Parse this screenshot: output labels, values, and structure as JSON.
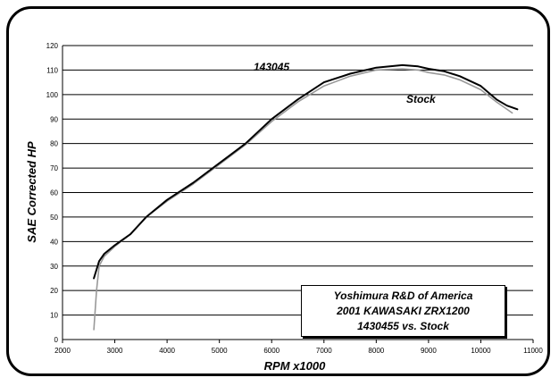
{
  "chart_data": {
    "type": "line",
    "title_lines": [
      "Yoshimura R&D of America",
      "2001 KAWASAKI ZRX1200",
      "1430455 vs. Stock"
    ],
    "xlabel": "RPM x1000",
    "ylabel": "SAE Corrected HP",
    "xlim": [
      2000,
      11000
    ],
    "ylim": [
      0,
      120
    ],
    "xticks": [
      2000,
      3000,
      4000,
      5000,
      6000,
      7000,
      8000,
      9000,
      10000,
      11000
    ],
    "yticks": [
      0,
      10,
      20,
      30,
      40,
      50,
      60,
      70,
      80,
      90,
      100,
      110,
      120
    ],
    "grid": "horizontal",
    "series": [
      {
        "name": "143045",
        "color": "#000000",
        "x": [
          2600,
          2700,
          2800,
          3000,
          3300,
          3600,
          4000,
          4500,
          5000,
          5500,
          6000,
          6500,
          7000,
          7500,
          8000,
          8500,
          8800,
          9000,
          9300,
          9600,
          10000,
          10300,
          10500,
          10700
        ],
        "y": [
          25,
          32,
          35,
          38.5,
          43,
          50,
          57,
          64,
          72,
          80,
          90,
          98,
          105,
          108.5,
          111,
          112,
          111.5,
          110.5,
          109.5,
          107.5,
          103.5,
          98,
          95.5,
          94
        ]
      },
      {
        "name": "Stock",
        "color": "#999999",
        "x": [
          2600,
          2650,
          2700,
          2800,
          3000,
          3300,
          3600,
          4000,
          4500,
          5000,
          5500,
          6000,
          6500,
          7000,
          7500,
          8000,
          8500,
          8800,
          9000,
          9300,
          9600,
          10000,
          10300,
          10600
        ],
        "y": [
          4,
          20,
          30,
          34,
          38,
          43,
          50,
          56.5,
          63.5,
          71.5,
          79.5,
          89,
          97,
          103.5,
          107.5,
          110,
          110.5,
          110,
          109,
          108,
          106,
          102,
          97,
          92.5
        ]
      }
    ]
  }
}
